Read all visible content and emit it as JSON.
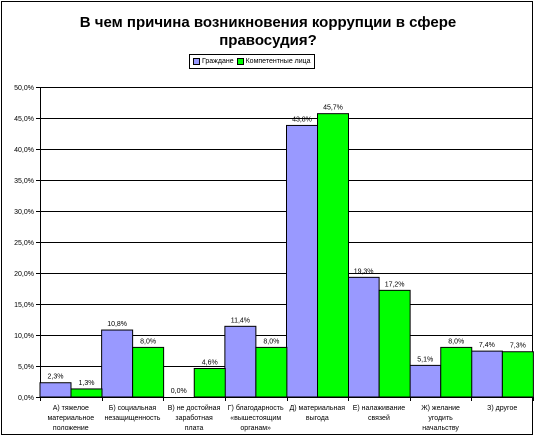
{
  "chart_data": {
    "type": "bar",
    "title_lines": [
      "В чем причина возникновения коррупции в сфере",
      "правосудия?"
    ],
    "categories": [
      [
        "А) тяжелое",
        "материальное",
        "положение"
      ],
      [
        "Б) социальная",
        "незащищенность"
      ],
      [
        "В) не достойная",
        "заработная",
        "плата"
      ],
      [
        "Г) благодарность",
        "«вышестоящим",
        "органам»"
      ],
      [
        "Д) материальная",
        "выгода"
      ],
      [
        "Е) налаживание",
        "связей"
      ],
      [
        "Ж) желание",
        "угодить",
        "начальству"
      ],
      [
        "З) другое"
      ]
    ],
    "series": [
      {
        "name": "Граждане",
        "color": "#9999ff",
        "values": [
          2.3,
          10.8,
          0.0,
          11.4,
          43.8,
          19.3,
          5.1,
          7.4
        ],
        "labels": [
          "2,3%",
          "10,8%",
          "0,0%",
          "11,4%",
          "43,8%",
          "19,3%",
          "5,1%",
          "7,4%"
        ]
      },
      {
        "name": "Компетентные лица",
        "color": "#00ff00",
        "values": [
          1.3,
          8.0,
          4.6,
          8.0,
          45.7,
          17.2,
          8.0,
          7.3
        ],
        "labels": [
          "1,3%",
          "8,0%",
          "4,6%",
          "8,0%",
          "45,7%",
          "17,2%",
          "8,0%",
          "7,3%"
        ]
      }
    ],
    "ylim": [
      0,
      50
    ],
    "yticks": [
      {
        "value": 0,
        "label": "0,0%"
      },
      {
        "value": 5,
        "label": "5,0%"
      },
      {
        "value": 10,
        "label": "10,0%"
      },
      {
        "value": 15,
        "label": "15,0%"
      },
      {
        "value": 20,
        "label": "20,0%"
      },
      {
        "value": 25,
        "label": "25,0%"
      },
      {
        "value": 30,
        "label": "30,0%"
      },
      {
        "value": 35,
        "label": "35,0%"
      },
      {
        "value": 40,
        "label": "40,0%"
      },
      {
        "value": 45,
        "label": "45,0%"
      },
      {
        "value": 50,
        "label": "50,0%"
      }
    ],
    "grid": true,
    "legend_position": "top"
  }
}
